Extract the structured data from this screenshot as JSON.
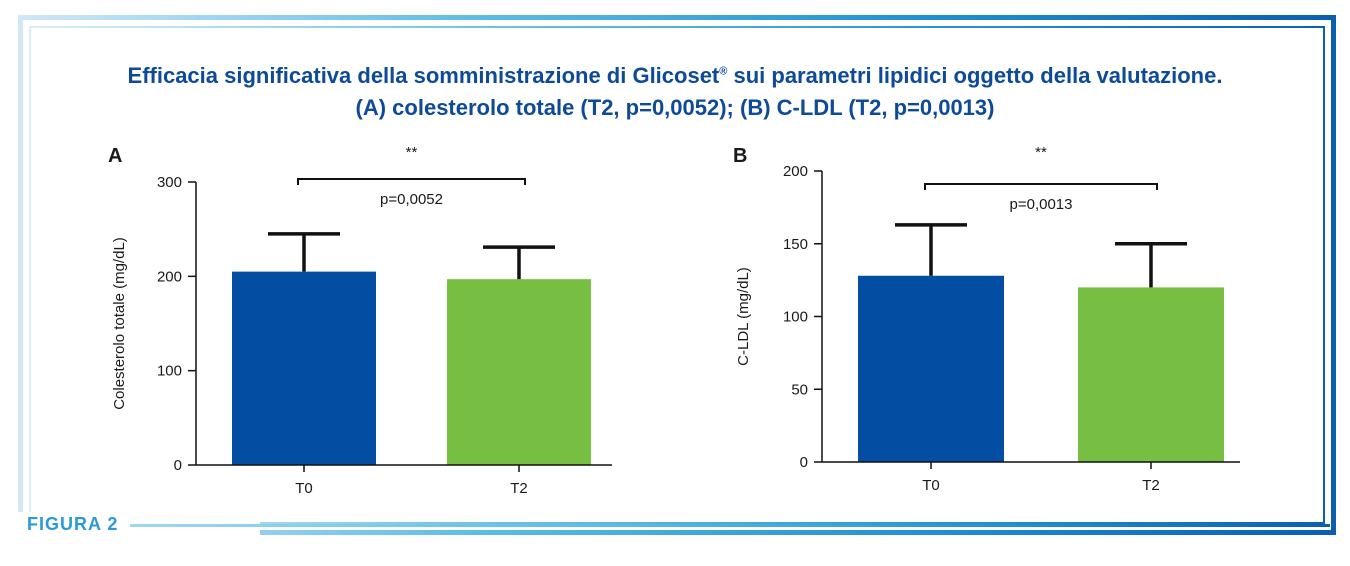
{
  "title": {
    "line1_main": "Efficacia significativa della somministrazione di Glicoset",
    "line1_sup": "®",
    "line1_tail": " sui parametri lipidici oggetto della valutazione.",
    "line2": "(A) colesterolo totale (T2, p=0,0052); (B) C-LDL (T2, p=0,0013)"
  },
  "figure_label": "FIGURA 2",
  "colors": {
    "t0": "#034ea2",
    "t2": "#76bf43",
    "title": "#0d4a99",
    "figure_label": "#2a9ad8"
  },
  "chart_data": [
    {
      "type": "bar",
      "panel_label": "A",
      "categories": [
        "T0",
        "T2"
      ],
      "values": [
        205,
        197
      ],
      "error_upper": [
        245,
        231
      ],
      "ylabel": "Colesterolo totale (mg/dL)",
      "ylim": [
        0,
        300
      ],
      "yticks": [
        0,
        100,
        200,
        300
      ],
      "significance": {
        "stars": "**",
        "label": "p=0,0052"
      }
    },
    {
      "type": "bar",
      "panel_label": "B",
      "categories": [
        "T0",
        "T2"
      ],
      "values": [
        128,
        120
      ],
      "error_upper": [
        163,
        150
      ],
      "ylabel": "C-LDL (mg/dL)",
      "ylim": [
        0,
        200
      ],
      "yticks": [
        0,
        50,
        100,
        150,
        200
      ],
      "significance": {
        "stars": "**",
        "label": "p=0,0013"
      }
    }
  ]
}
